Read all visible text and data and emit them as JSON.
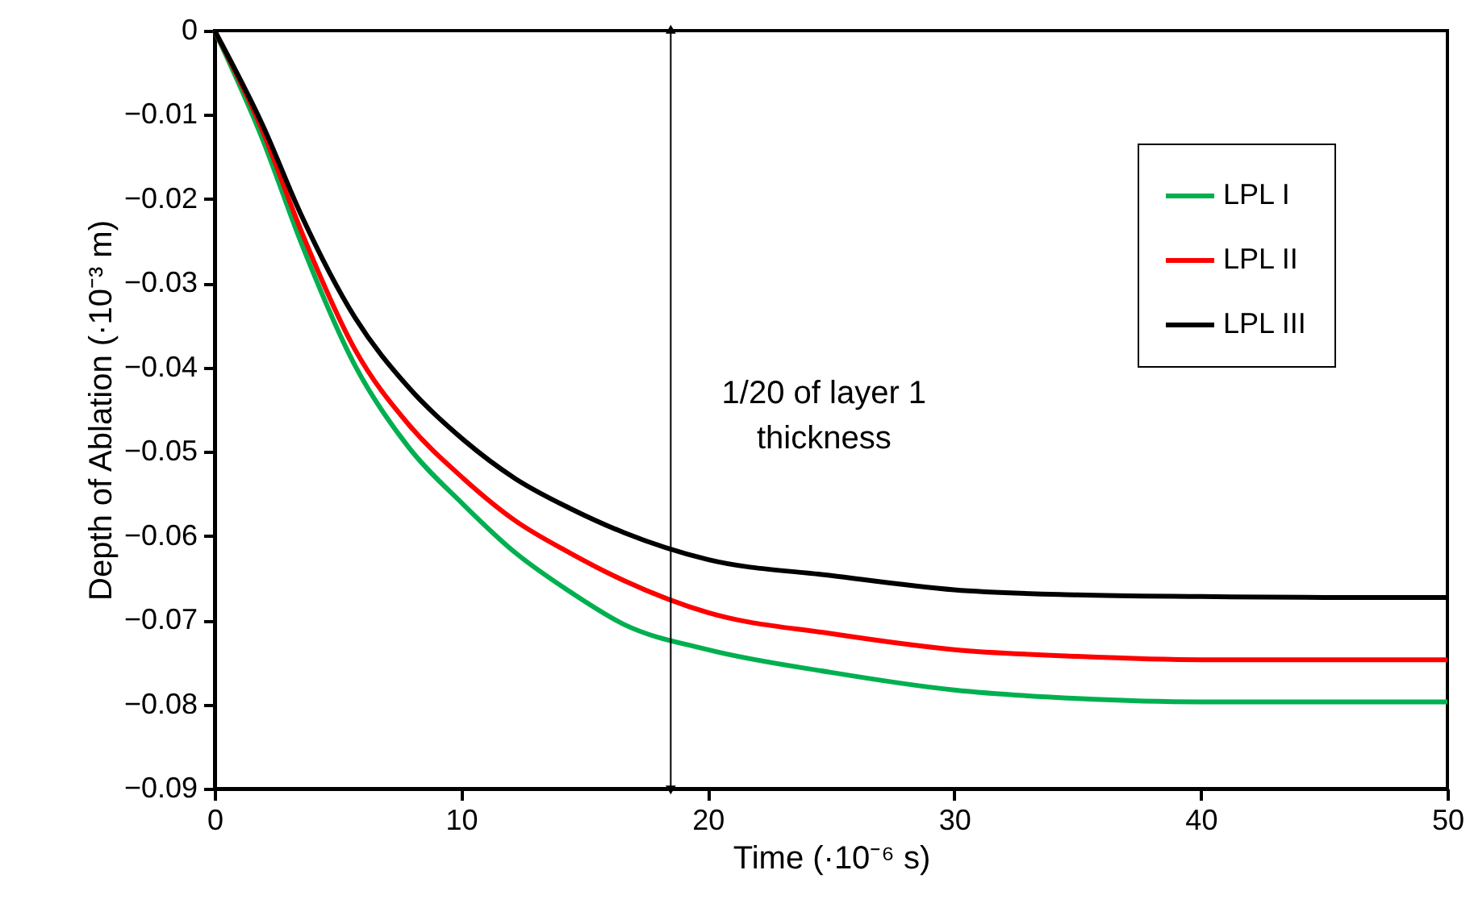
{
  "chart_data": {
    "type": "line",
    "xlabel": "Time (·10⁻⁶ s)",
    "ylabel": "Depth of Ablation (·10⁻³ m)",
    "xlim": [
      0,
      50
    ],
    "xticks": [
      0,
      10,
      20,
      30,
      40,
      50
    ],
    "ylim": [
      -0.09,
      0
    ],
    "yticks": [
      0,
      -0.01,
      -0.02,
      -0.03,
      -0.04,
      -0.05,
      -0.06,
      -0.07,
      -0.08,
      -0.09
    ],
    "grid": false,
    "legend": "top right",
    "marker": "none",
    "line_style": "solid",
    "x": [
      0,
      1.96,
      3.5,
      5.7,
      7.85,
      10.1,
      12.2,
      14.4,
      16.6,
      20,
      25,
      30,
      35,
      40,
      45,
      50
    ],
    "series": [
      {
        "name": "LPL I",
        "color": "#00b050",
        "values": [
          0,
          -0.013,
          -0.0251,
          -0.0398,
          -0.0494,
          -0.0563,
          -0.062,
          -0.0666,
          -0.0705,
          -0.0735,
          -0.0762,
          -0.0783,
          -0.0793,
          -0.0797,
          -0.0797,
          -0.0797
        ]
      },
      {
        "name": "LPL II",
        "color": "#ff0000",
        "values": [
          0,
          -0.012,
          -0.0237,
          -0.0379,
          -0.0467,
          -0.0532,
          -0.0582,
          -0.062,
          -0.0653,
          -0.0691,
          -0.0716,
          -0.0735,
          -0.0743,
          -0.0747,
          -0.0747,
          -0.0747
        ]
      },
      {
        "name": "LPL III",
        "color": "#000000",
        "values": [
          0,
          -0.0113,
          -0.0218,
          -0.0341,
          -0.0423,
          -0.0486,
          -0.0532,
          -0.0567,
          -0.0596,
          -0.0628,
          -0.0647,
          -0.0664,
          -0.067,
          -0.0672,
          -0.0673,
          -0.0673
        ]
      }
    ],
    "ref_lines": [
      {
        "axis": "x",
        "value": 18.5,
        "label": "1/20 of layer 1\nthickness",
        "color": "#000000"
      }
    ]
  }
}
